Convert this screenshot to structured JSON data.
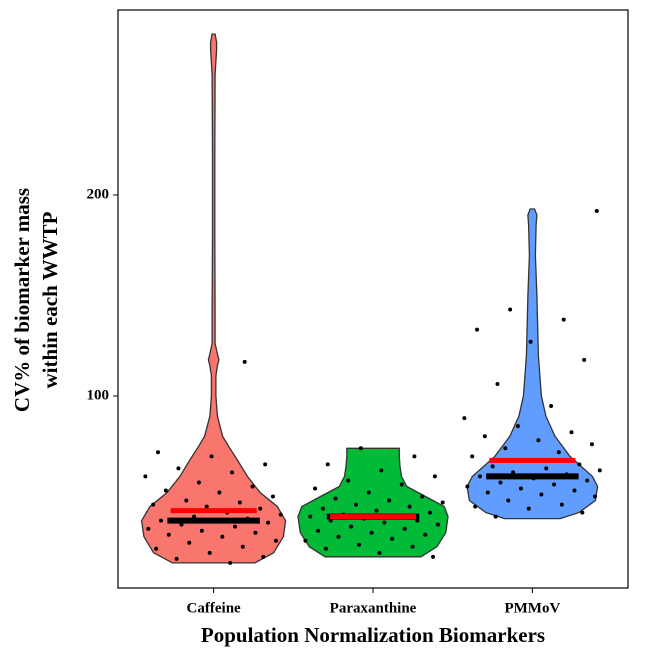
{
  "chart_data": {
    "type": "violin",
    "y_label": [
      "CV% of biomarker mass",
      "within each WWTP"
    ],
    "x_label": "Population Normalization Biomarkers",
    "categories": [
      "Caffeine",
      "Paraxanthine",
      "PMMoV"
    ],
    "ylim": [
      4.5,
      292
    ],
    "yticks": [
      100,
      200
    ],
    "series": [
      {
        "name": "Caffeine",
        "color": "#f8766d",
        "mean": 43,
        "median": 38,
        "violin": {
          "y": [
            17,
            22,
            30,
            38,
            45,
            52,
            60,
            68,
            75,
            80,
            90,
            100,
            110,
            115,
            118,
            121,
            126,
            140,
            180,
            220,
            260,
            272,
            276,
            280
          ],
          "width": [
            0.55,
            0.8,
            0.93,
            0.96,
            0.85,
            0.62,
            0.45,
            0.32,
            0.2,
            0.12,
            0.05,
            0.03,
            0.03,
            0.05,
            0.07,
            0.05,
            0.02,
            0.02,
            0.015,
            0.015,
            0.02,
            0.04,
            0.04,
            0.02
          ]
        },
        "points": [
          17,
          19,
          20,
          22,
          24,
          25,
          27,
          28,
          30,
          31,
          32,
          33,
          34,
          35,
          36,
          37,
          38,
          38,
          39,
          40,
          41,
          42,
          43,
          44,
          45,
          46,
          47,
          48,
          50,
          52,
          53,
          55,
          57,
          60,
          62,
          64,
          66,
          70,
          72,
          117
        ]
      },
      {
        "name": "Paraxanthine",
        "color": "#00ba38",
        "mean": 40,
        "median": 40,
        "violin": {
          "y": [
            20,
            25,
            32,
            40,
            45,
            50,
            55,
            60,
            65,
            70,
            74
          ],
          "width": [
            0.64,
            0.85,
            0.97,
            1.0,
            0.95,
            0.7,
            0.45,
            0.38,
            0.36,
            0.35,
            0.35
          ]
        },
        "points": [
          20,
          22,
          24,
          25,
          26,
          28,
          29,
          30,
          31,
          32,
          33,
          34,
          35,
          36,
          37,
          38,
          38,
          39,
          40,
          40,
          41,
          42,
          43,
          44,
          45,
          46,
          47,
          48,
          49,
          50,
          52,
          54,
          56,
          58,
          60,
          63,
          66,
          70,
          74
        ]
      },
      {
        "name": "PMMoV",
        "color": "#619cff",
        "mean": 68,
        "median": 60,
        "violin": {
          "y": [
            39,
            42,
            48,
            55,
            60,
            70,
            80,
            90,
            100,
            120,
            150,
            170,
            185,
            190,
            193
          ],
          "width": [
            0.37,
            0.62,
            0.84,
            0.87,
            0.8,
            0.5,
            0.3,
            0.18,
            0.12,
            0.08,
            0.06,
            0.04,
            0.05,
            0.06,
            0.03
          ]
        },
        "points": [
          40,
          42,
          44,
          45,
          46,
          48,
          50,
          51,
          52,
          53,
          54,
          55,
          56,
          57,
          58,
          59,
          60,
          61,
          62,
          63,
          64,
          65,
          66,
          68,
          70,
          72,
          74,
          76,
          78,
          80,
          82,
          85,
          89,
          95,
          106,
          118,
          127,
          133,
          138,
          143,
          192
        ]
      }
    ]
  }
}
